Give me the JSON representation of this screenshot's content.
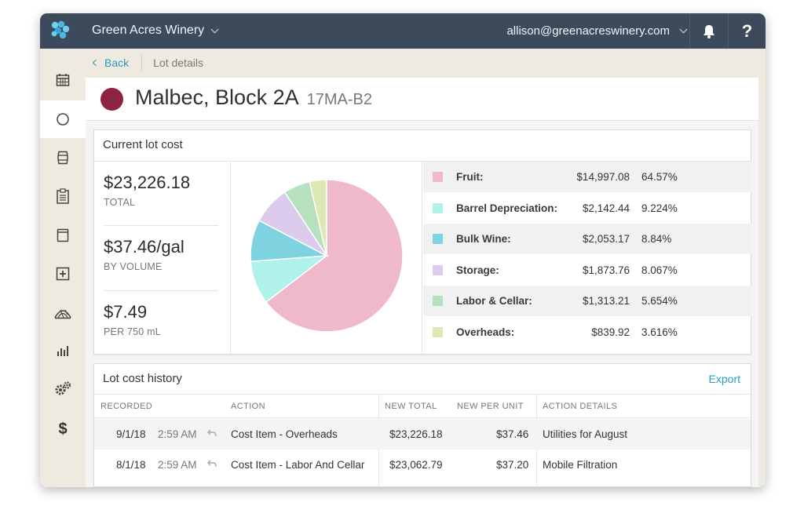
{
  "header": {
    "winery_name": "Green Acres Winery",
    "account_email": "allison@greenacreswinery.com",
    "help_label": "?"
  },
  "breadcrumb": {
    "back_label": "Back",
    "current": "Lot details"
  },
  "lot": {
    "name": "Malbec, Block 2A",
    "code": "17MA-B2",
    "color": "#8e2342"
  },
  "cost_panel": {
    "title": "Current lot cost",
    "metrics": [
      {
        "value": "$23,226.18",
        "label": "TOTAL"
      },
      {
        "value": "$37.46/gal",
        "label": "BY VOLUME"
      },
      {
        "value": "$7.49",
        "label": "PER 750 mL"
      }
    ],
    "breakdown": [
      {
        "label": "Fruit:",
        "amount": "$14,997.08",
        "pct": "64.57%",
        "color": "#f0b8cb",
        "share": 64.57
      },
      {
        "label": "Barrel Depreciation:",
        "amount": "$2,142.44",
        "pct": "9.224%",
        "color": "#aef2ea",
        "share": 9.224
      },
      {
        "label": "Bulk Wine:",
        "amount": "$2,053.17",
        "pct": "8.84%",
        "color": "#7fd3e1",
        "share": 8.84
      },
      {
        "label": "Storage:",
        "amount": "$1,873.76",
        "pct": "8.067%",
        "color": "#dccbec",
        "share": 8.067
      },
      {
        "label": "Labor & Cellar:",
        "amount": "$1,313.21",
        "pct": "5.654%",
        "color": "#b7e0be",
        "share": 5.654
      },
      {
        "label": "Overheads:",
        "amount": "$839.92",
        "pct": "3.616%",
        "color": "#dde9b3",
        "share": 3.616
      }
    ]
  },
  "history": {
    "title": "Lot cost history",
    "export_label": "Export",
    "columns": [
      "RECORDED",
      "ACTION",
      "NEW TOTAL",
      "NEW PER UNIT",
      "ACTION DETAILS"
    ],
    "rows": [
      {
        "date": "9/1/18",
        "time": "2:59 AM",
        "action": "Cost Item - Overheads",
        "new_total": "$23,226.18",
        "new_per_unit": "$37.46",
        "details": "Utilities for August"
      },
      {
        "date": "8/1/18",
        "time": "2:59 AM",
        "action": "Cost Item - Labor And Cellar",
        "new_total": "$23,062.79",
        "new_per_unit": "$37.20",
        "details": "Mobile Filtration"
      }
    ]
  },
  "sidebar": {
    "items": [
      {
        "icon": "calendar-icon"
      },
      {
        "icon": "circle-icon",
        "active": true
      },
      {
        "icon": "barrel-icon"
      },
      {
        "icon": "clipboard-icon"
      },
      {
        "icon": "tank-icon"
      },
      {
        "icon": "add-box-icon"
      },
      {
        "icon": "vineyard-icon"
      },
      {
        "icon": "bar-chart-icon"
      },
      {
        "icon": "gears-icon"
      },
      {
        "icon": "dollar-icon"
      }
    ]
  }
}
